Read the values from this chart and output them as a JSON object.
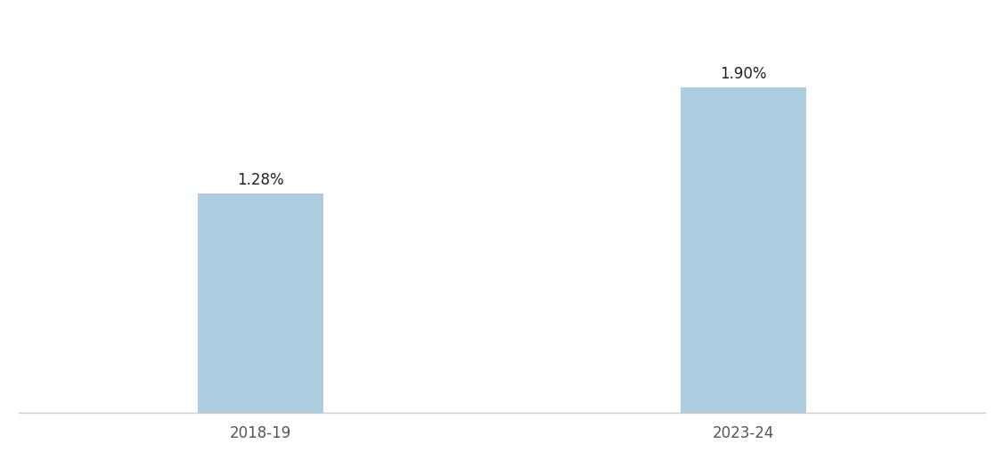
{
  "categories": [
    "2018-19",
    "2023-24"
  ],
  "values": [
    1.28,
    1.9
  ],
  "labels": [
    "1.28%",
    "1.90%"
  ],
  "bar_color": "#aecde0",
  "background_color": "#ffffff",
  "text_color": "#222222",
  "tick_label_color": "#555555",
  "bar_width": 0.13,
  "x_positions": [
    0.25,
    0.75
  ],
  "xlim": [
    0.0,
    1.0
  ],
  "ylim": [
    0,
    2.3
  ],
  "label_fontsize": 12,
  "tick_fontsize": 12,
  "spine_color": "#cccccc"
}
